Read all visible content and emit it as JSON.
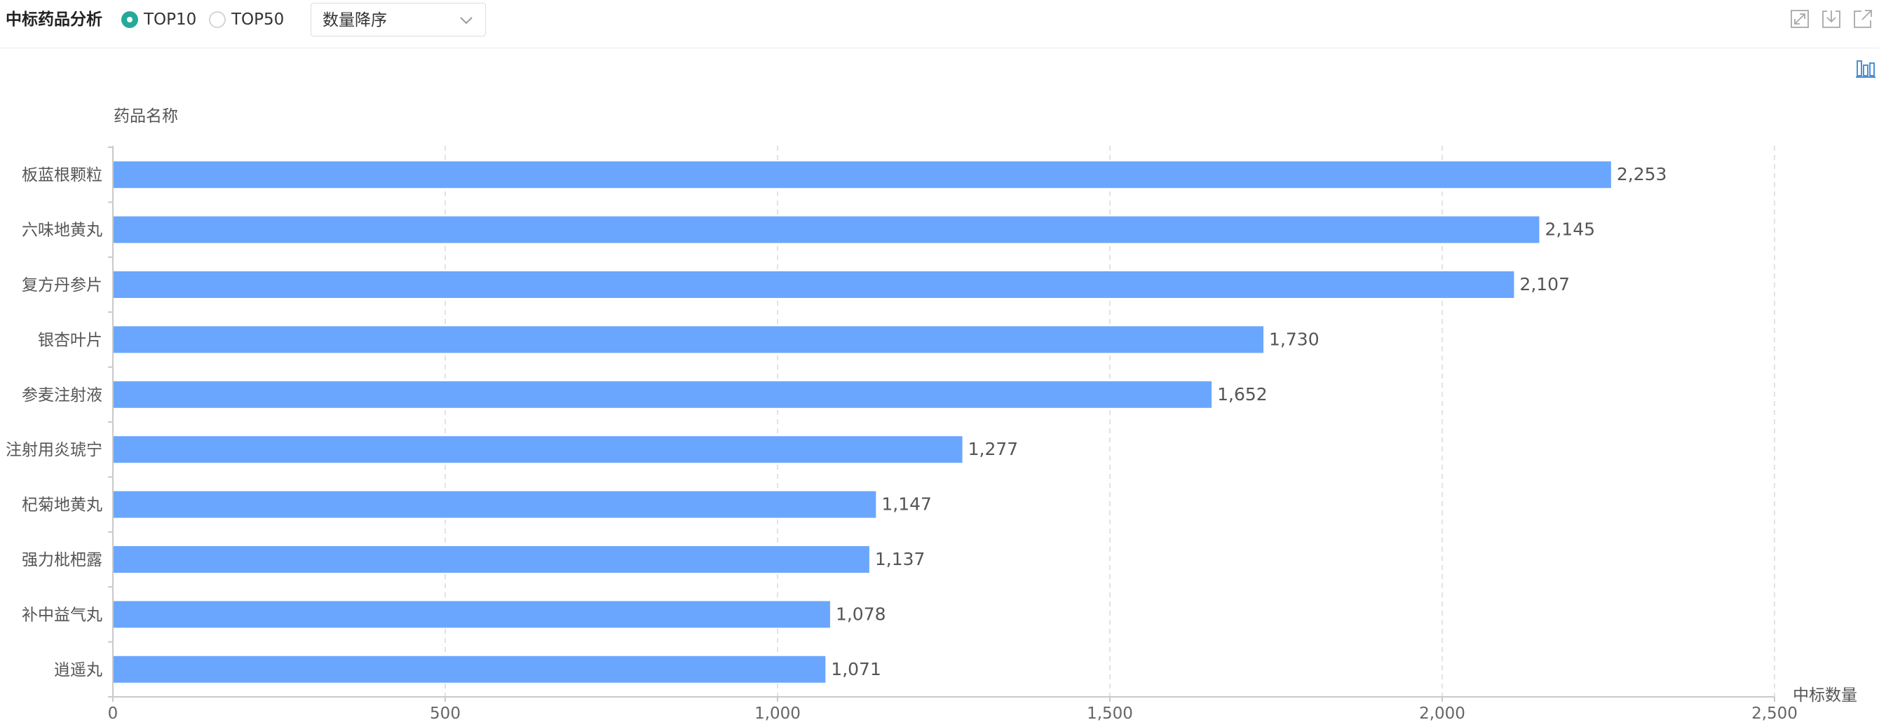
{
  "header": {
    "title": "中标药品分析",
    "radio_options": [
      {
        "label": "TOP10",
        "checked": true
      },
      {
        "label": "TOP50",
        "checked": false
      }
    ],
    "sort_select": {
      "value": "数量降序"
    },
    "tools": [
      "expand-icon",
      "download-icon",
      "external-link-icon"
    ],
    "chart_type_icon": "bar-chart-icon"
  },
  "colors": {
    "bar": "#6aa6fd",
    "accent": "#25a99a",
    "grid": "#e3e3e3",
    "axis": "#c9c9c9"
  },
  "chart_data": {
    "type": "bar",
    "orientation": "horizontal",
    "categories": [
      "板蓝根颗粒",
      "六味地黄丸",
      "复方丹参片",
      "银杏叶片",
      "参麦注射液",
      "注射用炎琥宁",
      "杞菊地黄丸",
      "强力枇杷露",
      "补中益气丸",
      "逍遥丸"
    ],
    "values": [
      2253,
      2145,
      2107,
      1730,
      1652,
      1277,
      1147,
      1137,
      1078,
      1071
    ],
    "value_labels": [
      "2,253",
      "2,145",
      "2,107",
      "1,730",
      "1,652",
      "1,277",
      "1,147",
      "1,137",
      "1,078",
      "1,071"
    ],
    "ylabel": "药品名称",
    "xlabel": "中标数量",
    "xlim": [
      0,
      2500
    ],
    "xticks": [
      0,
      500,
      1000,
      1500,
      2000,
      2500
    ],
    "xtick_labels": [
      "0",
      "500",
      "1,000",
      "1,500",
      "2,000",
      "2,500"
    ],
    "grid": "vertical dashed"
  }
}
